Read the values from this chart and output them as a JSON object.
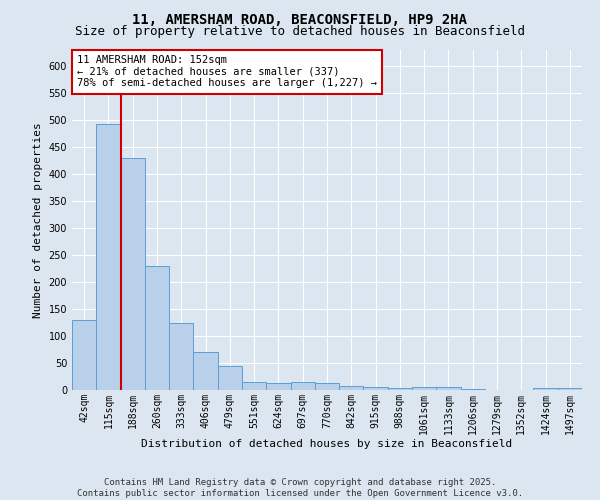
{
  "title1": "11, AMERSHAM ROAD, BEACONSFIELD, HP9 2HA",
  "title2": "Size of property relative to detached houses in Beaconsfield",
  "xlabel": "Distribution of detached houses by size in Beaconsfield",
  "ylabel": "Number of detached properties",
  "categories": [
    "42sqm",
    "115sqm",
    "188sqm",
    "260sqm",
    "333sqm",
    "406sqm",
    "479sqm",
    "551sqm",
    "624sqm",
    "697sqm",
    "770sqm",
    "842sqm",
    "915sqm",
    "988sqm",
    "1061sqm",
    "1133sqm",
    "1206sqm",
    "1279sqm",
    "1352sqm",
    "1424sqm",
    "1497sqm"
  ],
  "values": [
    130,
    493,
    430,
    230,
    125,
    70,
    45,
    15,
    13,
    15,
    13,
    7,
    6,
    3,
    5,
    5,
    2,
    0,
    0,
    3,
    3
  ],
  "bar_color": "#b8d0ea",
  "bar_edge_color": "#5a9fd4",
  "bg_color": "#dce6f0",
  "grid_color": "#ffffff",
  "annotation_text": "11 AMERSHAM ROAD: 152sqm\n← 21% of detached houses are smaller (337)\n78% of semi-detached houses are larger (1,227) →",
  "annotation_box_color": "#ffffff",
  "annotation_box_edge": "#cc0000",
  "vline_x": 1.5,
  "vline_color": "#cc0000",
  "ylim": [
    0,
    630
  ],
  "yticks": [
    0,
    50,
    100,
    150,
    200,
    250,
    300,
    350,
    400,
    450,
    500,
    550,
    600
  ],
  "footer1": "Contains HM Land Registry data © Crown copyright and database right 2025.",
  "footer2": "Contains public sector information licensed under the Open Government Licence v3.0.",
  "title1_fontsize": 10,
  "title2_fontsize": 9,
  "tick_fontsize": 7,
  "label_fontsize": 8,
  "annotation_fontsize": 7.5,
  "footer_fontsize": 6.5
}
